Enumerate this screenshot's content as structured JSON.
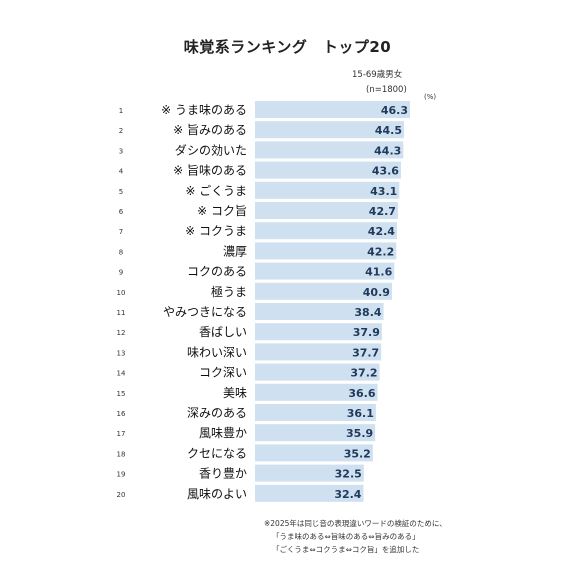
{
  "title": "味覚系ランキング　トップ20",
  "subtitle_lines": [
    "15-69歳男女",
    "(n=1800)"
  ],
  "unit": "(%)",
  "colors": {
    "bar": "#cfe0f0",
    "value_text": "#1f3a5a",
    "label_text": "#111111"
  },
  "chart_data": {
    "type": "bar",
    "orientation": "horizontal",
    "title": "味覚系ランキング　トップ20",
    "ranks": [
      "1",
      "2",
      "3",
      "4",
      "5",
      "6",
      "7",
      "8",
      "9",
      "10",
      "11",
      "12",
      "13",
      "14",
      "15",
      "16",
      "17",
      "18",
      "19",
      "20"
    ],
    "categories": [
      "※ うま味のある",
      "※ 旨みのある",
      "ダシの効いた",
      "※ 旨味のある",
      "※ ごくうま",
      "※ コク旨",
      "※ コクうま",
      "濃厚",
      "コクのある",
      "極うま",
      "やみつきになる",
      "香ばしい",
      "味わい深い",
      "コク深い",
      "美味",
      "深みのある",
      "風味豊か",
      "クセになる",
      "香り豊か",
      "風味のよい"
    ],
    "values": [
      46.3,
      44.5,
      44.3,
      43.6,
      43.1,
      42.7,
      42.4,
      42.2,
      41.6,
      40.9,
      38.4,
      37.9,
      37.7,
      37.2,
      36.6,
      36.1,
      35.9,
      35.2,
      32.5,
      32.4
    ],
    "value_labels": [
      "46.3",
      "44.5",
      "44.3",
      "43.6",
      "43.1",
      "42.7",
      "42.4",
      "42.2",
      "41.6",
      "40.9",
      "38.4",
      "37.9",
      "37.7",
      "37.2",
      "36.6",
      "36.1",
      "35.9",
      "35.2",
      "32.5",
      "32.4"
    ],
    "xlim": [
      0,
      46.3
    ],
    "grid": false,
    "legend": "none"
  },
  "notes": [
    "※2025年は同じ音の表現違いワードの検証のために、",
    "「うま味のある⇔旨味のある⇔旨みのある」",
    "「ごくうま⇔コクうま⇔コク旨」を追加した"
  ]
}
